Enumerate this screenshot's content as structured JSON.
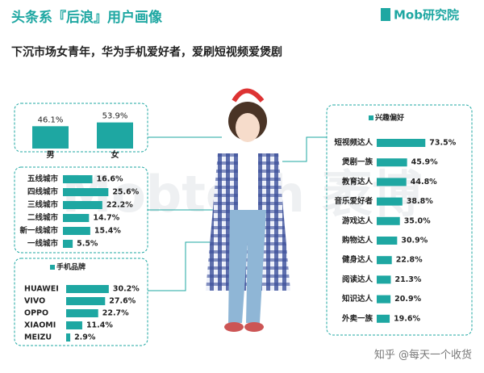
{
  "title": "头条系『后浪』用户画像",
  "subtitle": "下沉市场女青年，华为手机爱好者，爱刷短视频爱煲剧",
  "brand": "Mob研究院",
  "bg_watermark": "Mobtech 袤博",
  "watermark": "知乎 @每天一个收货",
  "chart_data": [
    {
      "type": "bar",
      "categories": [
        "男",
        "女"
      ],
      "values": [
        46.1,
        53.9
      ],
      "value_labels": [
        "46.1%",
        "53.9%"
      ],
      "color": "#1ea7a2"
    },
    {
      "type": "hbar",
      "categories": [
        "五线城市",
        "四线城市",
        "三线城市",
        "二线城市",
        "新一线城市",
        "一线城市"
      ],
      "values": [
        16.6,
        25.6,
        22.2,
        14.7,
        15.4,
        5.5
      ],
      "value_labels": [
        "16.6%",
        "25.6%",
        "22.2%",
        "14.7%",
        "15.4%",
        "5.5%"
      ],
      "color": "#1ea7a2"
    },
    {
      "type": "hbar",
      "title": "手机品牌",
      "categories": [
        "HUAWEI",
        "VIVO",
        "OPPO",
        "XIAOMI",
        "MEIZU"
      ],
      "values": [
        30.2,
        27.6,
        22.7,
        11.4,
        2.9
      ],
      "value_labels": [
        "30.2%",
        "27.6%",
        "22.7%",
        "11.4%",
        "2.9%"
      ],
      "color": "#1ea7a2"
    },
    {
      "type": "hbar",
      "title": "兴趣偏好",
      "categories": [
        "短视频达人",
        "煲剧一族",
        "教育达人",
        "音乐爱好者",
        "游戏达人",
        "购物达人",
        "健身达人",
        "阅读达人",
        "知识达人",
        "外卖一族"
      ],
      "values": [
        73.5,
        45.9,
        44.8,
        38.8,
        35.0,
        30.9,
        22.8,
        21.3,
        20.9,
        19.6
      ],
      "value_labels": [
        "73.5%",
        "45.9%",
        "44.8%",
        "38.8%",
        "35.0%",
        "30.9%",
        "22.8%",
        "21.3%",
        "20.9%",
        "19.6%"
      ],
      "color": "#1ea7a2"
    }
  ]
}
